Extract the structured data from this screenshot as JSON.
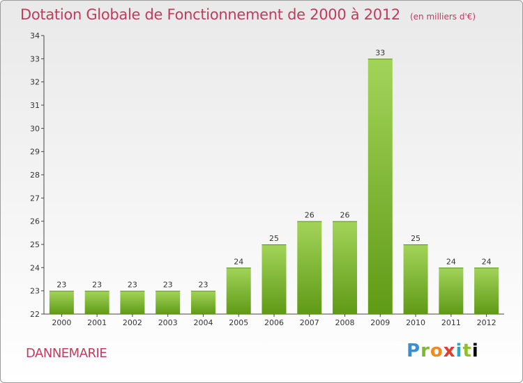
{
  "chart_title": "Dotation Globale de Fonctionnement de 2000 à 2012",
  "chart_unit": "(en milliers d'€)",
  "commune": "DANNEMARIE",
  "logo_text": "Proxiti",
  "logo_letters": [
    "P",
    "r",
    "o",
    "x",
    "i",
    "t",
    "i"
  ],
  "colors": {
    "accent": "#c23a5e",
    "bar_top": "#a3d45a",
    "bar_bottom": "#5f9a16"
  },
  "chart_data": {
    "type": "bar",
    "title": "Dotation Globale de Fonctionnement de 2000 à 2012",
    "subtitle": "(en milliers d'€)",
    "xlabel": "",
    "ylabel": "",
    "categories": [
      "2000",
      "2001",
      "2002",
      "2003",
      "2004",
      "2005",
      "2006",
      "2007",
      "2008",
      "2009",
      "2010",
      "2011",
      "2012"
    ],
    "values": [
      23,
      23,
      23,
      23,
      23,
      24,
      25,
      26,
      26,
      33,
      25,
      24,
      24
    ],
    "data_labels": [
      "23",
      "23",
      "23",
      "23",
      "23",
      "24",
      "25",
      "26",
      "26",
      "33",
      "25",
      "24",
      "24"
    ],
    "yticks": [
      "22",
      "23",
      "24",
      "25",
      "26",
      "27",
      "28",
      "29",
      "30",
      "31",
      "32",
      "33",
      "34"
    ],
    "ylim": [
      22,
      34
    ],
    "grid": false,
    "legend": "none"
  }
}
